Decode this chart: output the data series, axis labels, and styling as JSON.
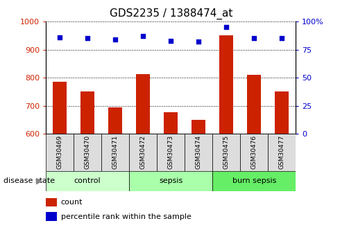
{
  "title": "GDS2235 / 1388474_at",
  "samples": [
    "GSM30469",
    "GSM30470",
    "GSM30471",
    "GSM30472",
    "GSM30473",
    "GSM30474",
    "GSM30475",
    "GSM30476",
    "GSM30477"
  ],
  "count_values": [
    785,
    752,
    695,
    812,
    678,
    650,
    950,
    810,
    752
  ],
  "percentile_values": [
    86,
    85,
    84,
    87,
    83,
    82,
    95,
    85,
    85
  ],
  "groups": [
    {
      "label": "control",
      "start": 0,
      "end": 3,
      "color": "#ccffcc"
    },
    {
      "label": "sepsis",
      "start": 3,
      "end": 6,
      "color": "#aaffaa"
    },
    {
      "label": "burn sepsis",
      "start": 6,
      "end": 9,
      "color": "#66ee66"
    }
  ],
  "ylim_left": [
    600,
    1000
  ],
  "ylim_right": [
    0,
    100
  ],
  "yticks_left": [
    600,
    700,
    800,
    900,
    1000
  ],
  "yticks_right": [
    0,
    25,
    50,
    75,
    100
  ],
  "yticklabels_right": [
    "0",
    "25",
    "50",
    "75",
    "100%"
  ],
  "bar_color": "#cc2200",
  "dot_color": "#0000cc",
  "bar_width": 0.5,
  "background_color": "#ffffff",
  "disease_state_label": "disease state",
  "legend_count": "count",
  "legend_percentile": "percentile rank within the sample",
  "sample_box_color": "#dddddd",
  "group_colors": [
    "#ccffcc",
    "#aaffaa",
    "#66ee66"
  ]
}
